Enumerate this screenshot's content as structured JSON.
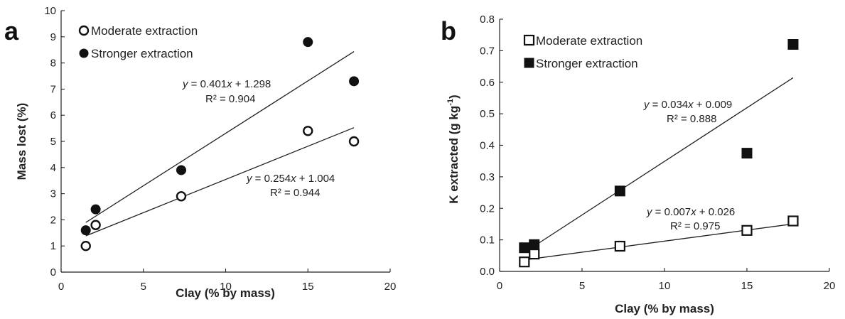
{
  "chart_data": [
    {
      "type": "scatter",
      "panel_label": "a",
      "xlabel": "Clay (% by mass)",
      "ylabel": "Mass lost (%)",
      "xlim": [
        0,
        20
      ],
      "ylim": [
        0,
        10
      ],
      "xticks": [
        0,
        5,
        10,
        15,
        20
      ],
      "yticks": [
        0,
        1,
        2,
        3,
        4,
        5,
        6,
        7,
        8,
        9,
        10
      ],
      "legend_position": "top-left",
      "series": [
        {
          "name": "Moderate extraction",
          "marker": "open-circle",
          "points": [
            [
              1.5,
              1.0
            ],
            [
              2.1,
              1.8
            ],
            [
              7.3,
              2.9
            ],
            [
              15.0,
              5.4
            ],
            [
              17.8,
              5.0
            ]
          ],
          "fit": {
            "slope": 0.254,
            "intercept": 1.004,
            "x_range": [
              1.5,
              17.8
            ]
          },
          "equation_prefix": "y",
          "equation_rest": " = 0.254",
          "equation_var": "x",
          "equation_tail": " + 1.004",
          "r2": "R² = 0.944"
        },
        {
          "name": "Stronger extraction",
          "marker": "filled-circle",
          "points": [
            [
              1.5,
              1.6
            ],
            [
              2.1,
              2.4
            ],
            [
              7.3,
              3.9
            ],
            [
              15.0,
              8.8
            ],
            [
              17.8,
              7.3
            ]
          ],
          "fit": {
            "slope": 0.401,
            "intercept": 1.298,
            "x_range": [
              1.5,
              17.8
            ]
          },
          "equation_prefix": "y",
          "equation_rest": " = 0.401",
          "equation_var": "x",
          "equation_tail": " + 1.298",
          "r2": "R² = 0.904"
        }
      ]
    },
    {
      "type": "scatter",
      "panel_label": "b",
      "xlabel": "Clay (% by mass)",
      "ylabel_main": "K extracted (g kg",
      "ylabel_sup": "-1",
      "ylabel_close": ")",
      "xlim": [
        0,
        20
      ],
      "ylim": [
        0,
        0.8
      ],
      "xticks": [
        0,
        5,
        10,
        15,
        20
      ],
      "yticks": [
        0,
        0.1,
        0.2,
        0.3,
        0.4,
        0.5,
        0.6,
        0.7,
        0.8
      ],
      "legend_position": "top-left",
      "series": [
        {
          "name": "Moderate extraction",
          "marker": "open-square",
          "points": [
            [
              1.5,
              0.03
            ],
            [
              2.1,
              0.055
            ],
            [
              7.3,
              0.08
            ],
            [
              15.0,
              0.13
            ],
            [
              17.8,
              0.16
            ]
          ],
          "fit": {
            "slope": 0.007,
            "intercept": 0.026,
            "x_range": [
              1.5,
              17.8
            ]
          },
          "equation_prefix": "y",
          "equation_rest": " = 0.007",
          "equation_var": "x",
          "equation_tail": " + 0.026",
          "r2": "R² = 0.975"
        },
        {
          "name": "Stronger extraction",
          "marker": "filled-square",
          "points": [
            [
              1.5,
              0.075
            ],
            [
              2.1,
              0.085
            ],
            [
              7.3,
              0.255
            ],
            [
              15.0,
              0.375
            ],
            [
              17.8,
              0.72
            ]
          ],
          "fit": {
            "slope": 0.034,
            "intercept": 0.009,
            "x_range": [
              1.5,
              17.8
            ]
          },
          "equation_prefix": "y",
          "equation_rest": " = 0.034",
          "equation_var": "x",
          "equation_tail": " + 0.009",
          "r2": "R² = 0.888"
        }
      ]
    }
  ]
}
